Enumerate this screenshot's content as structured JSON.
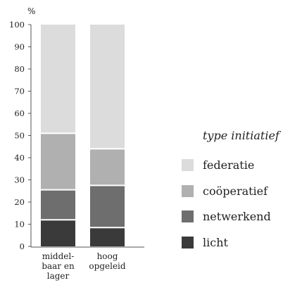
{
  "chart_data": {
    "type": "bar",
    "stacked": true,
    "unit_label": "%",
    "categories": [
      [
        "middel-",
        "baar en",
        "lager"
      ],
      [
        "hoog",
        "opgeleid"
      ]
    ],
    "y_ticks": [
      "0",
      "10",
      "20",
      "30",
      "40",
      "50",
      "60",
      "70",
      "80",
      "90",
      "100"
    ],
    "ylim": [
      0,
      100
    ],
    "grid": false,
    "legend_title": "type initiatief",
    "legend_position": "right",
    "series": [
      {
        "name": "licht",
        "color": "#3a3a3a",
        "values": [
          12,
          8.5
        ]
      },
      {
        "name": "netwerkend",
        "color": "#6e6e6e",
        "values": [
          13.5,
          19
        ]
      },
      {
        "name": "coöperatief",
        "color": "#b0b0b0",
        "values": [
          25.5,
          16.5
        ]
      },
      {
        "name": "federatie",
        "color": "#dcdcdc",
        "values": [
          49,
          56
        ]
      }
    ],
    "legend_order": [
      "federatie",
      "coöperatief",
      "netwerkend",
      "licht"
    ]
  }
}
